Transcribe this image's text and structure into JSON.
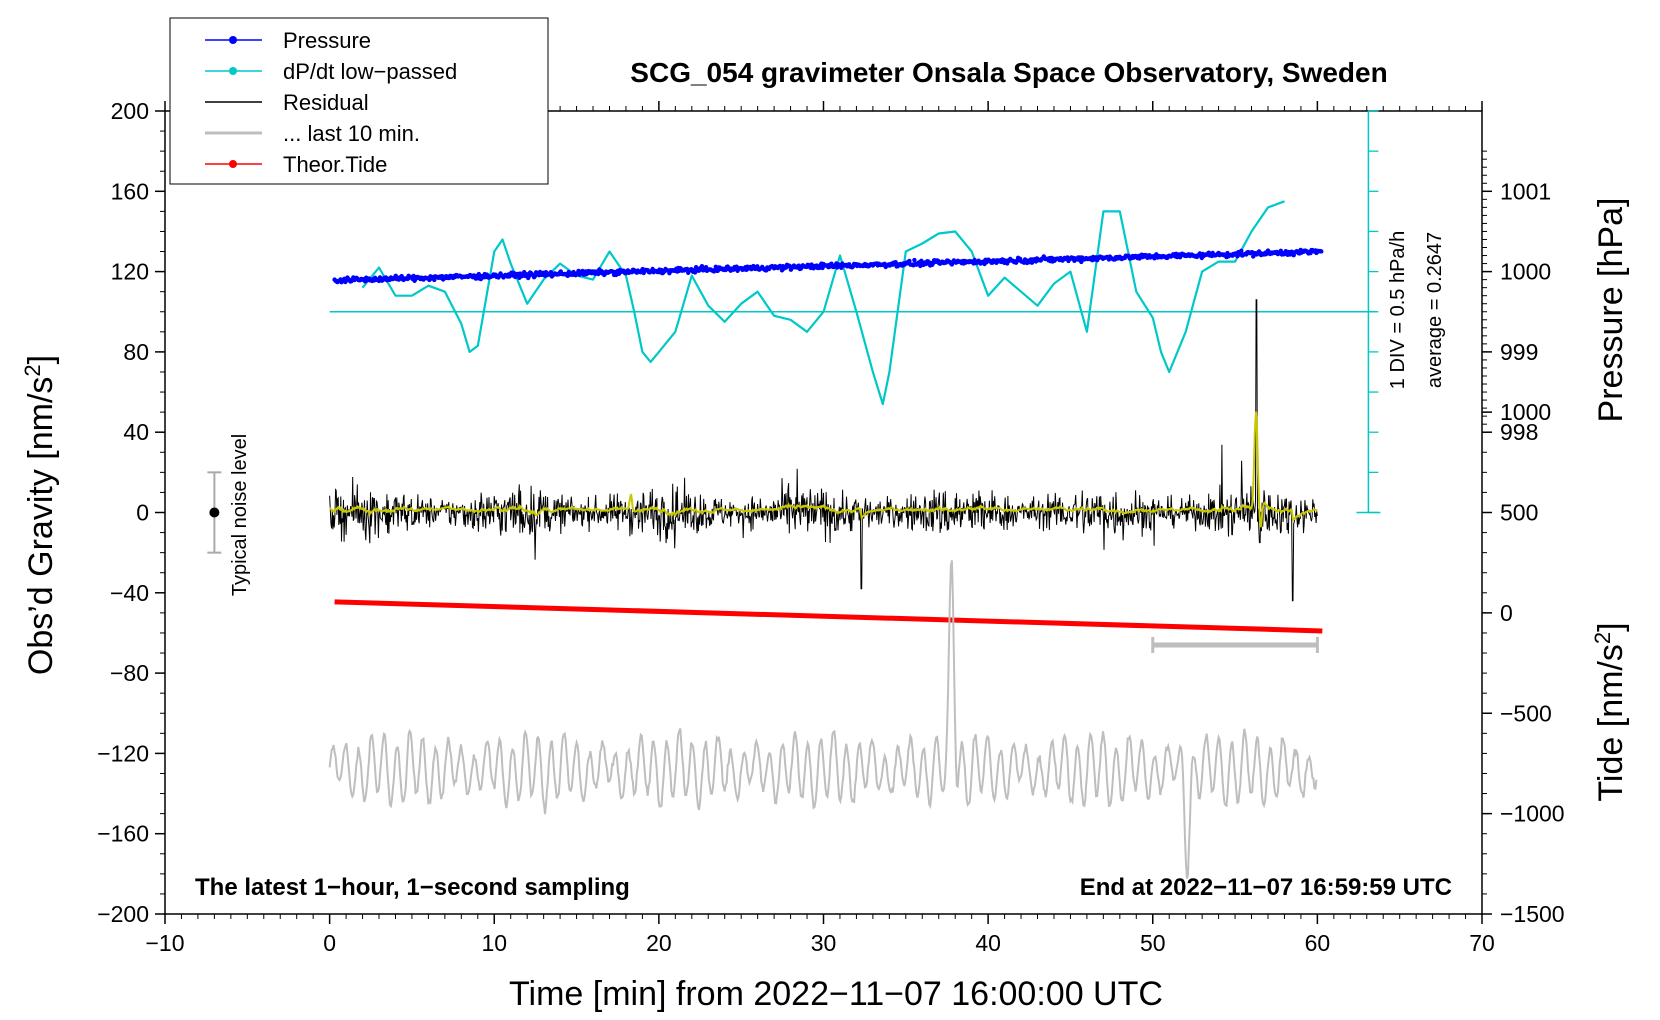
{
  "chart_data": {
    "type": "line",
    "title": "SCG_054 gravimeter Onsala Space Observatory, Sweden",
    "xlabel": "Time [min] from 2022−11−07 16:00:00 UTC",
    "ylabel_left_text": "Obs’d Gravity [nm/s",
    "ylabel_left_sup": "2",
    "ylabel_left_close": "]",
    "ylabel_right_pressure": "Pressure [hPa]",
    "ylabel_right_tide_text": "Tide [nm/s",
    "ylabel_right_tide_sup": "2",
    "ylabel_right_tide_close": "]",
    "xlim": [
      -10,
      70
    ],
    "ylim": [
      -200,
      200
    ],
    "x_ticks": [
      -10,
      0,
      10,
      20,
      30,
      40,
      50,
      60,
      70
    ],
    "x_tick_labels": [
      "−10",
      "0",
      "10",
      "20",
      "30",
      "40",
      "50",
      "60",
      "70"
    ],
    "y_ticks": [
      -200,
      -160,
      -120,
      -80,
      -40,
      0,
      40,
      80,
      120,
      160,
      200
    ],
    "y_tick_labels": [
      "−200",
      "−160",
      "−120",
      "−80",
      "−40",
      "0",
      "40",
      "80",
      "120",
      "160",
      "200"
    ],
    "pressure_axis": {
      "ticks": [
        998,
        999,
        1000,
        1001
      ],
      "tick_labels": [
        "998",
        "999",
        "1000",
        "1001"
      ],
      "gravity_per_hPa": 40,
      "gravity_at_998": 40
    },
    "tide_axis": {
      "ticks": [
        -1500,
        -1000,
        -500,
        0,
        500,
        1000
      ],
      "tick_labels": [
        "−1500",
        "−1000",
        "−500",
        "0",
        "500",
        "1000"
      ],
      "gravity_at_minus1500": -200,
      "gravity_per_500": 50
    },
    "legend": [
      {
        "label": "Pressure",
        "color": "#0000ff",
        "marker": true
      },
      {
        "label": "dP/dt low−passed",
        "color": "#00c8c8",
        "marker": true
      },
      {
        "label": "Residual",
        "color": "#000000",
        "marker": false
      },
      {
        "label": "... last 10 min.",
        "color": "#bebebe",
        "marker": false
      },
      {
        "label": "Theor.Tide",
        "color": "#ff0000",
        "marker": true
      }
    ],
    "annotations": {
      "bottom_left": "The latest 1−hour, 1−second sampling",
      "bottom_right": "End at 2022−11−07 16:59:59 UTC",
      "noise_label": "Typical noise level",
      "dpdt_scale": "1 DIV = 0.5 hPa/h",
      "dpdt_average": "average = 0.2647"
    },
    "colors": {
      "pressure": "#0000ff",
      "dpdt": "#00c8c8",
      "residual": "#000000",
      "residual_smooth": "#c8c800",
      "last10": "#bebebe",
      "tide": "#ff0000"
    },
    "series": [
      {
        "name": "Pressure",
        "units": "hPa",
        "x_range": [
          0.3,
          60.3
        ],
        "start": 999.89,
        "end": 1000.25,
        "scatter_hpa": 0.03
      },
      {
        "name": "dP/dt low−passed",
        "units": "gravity-axis value",
        "baseline": 100,
        "x": [
          2,
          3,
          4,
          5,
          6,
          7,
          8,
          8.5,
          9,
          10,
          10.5,
          11,
          12,
          13,
          14,
          15,
          16,
          17,
          18,
          18.5,
          19,
          19.5,
          20,
          21,
          22,
          23,
          24,
          25,
          26,
          27,
          28,
          29,
          30,
          31,
          32,
          33,
          33.6,
          34,
          35,
          36,
          37,
          38,
          39,
          40,
          41,
          42,
          43,
          44,
          45,
          46,
          47,
          48,
          49,
          50,
          50.5,
          51,
          52,
          53,
          54,
          55,
          56,
          57,
          58
        ],
        "y": [
          112,
          122,
          108,
          108,
          113,
          110,
          94,
          80,
          83,
          130,
          136,
          124,
          104,
          116,
          124,
          118,
          116,
          130,
          118,
          100,
          80,
          75,
          80,
          90,
          118,
          103,
          95,
          104,
          110,
          98,
          96,
          90,
          100,
          128,
          100,
          70,
          54,
          70,
          130,
          134,
          139,
          140,
          130,
          108,
          117,
          110,
          103,
          114,
          120,
          90,
          150,
          150,
          110,
          97,
          80,
          70,
          90,
          120,
          125,
          125,
          140,
          152,
          155
        ]
      },
      {
        "name": "Residual",
        "units": "nm/s^2",
        "x_range": [
          0,
          60
        ],
        "amplitude": 10,
        "spikes": [
          {
            "x": 56.3,
            "y": 106
          },
          {
            "x": 56.5,
            "y": -15
          },
          {
            "x": 58.5,
            "y": -44
          },
          {
            "x": 32.3,
            "y": -38
          }
        ]
      },
      {
        "name": "... last 10 min.",
        "units": "nm/s^2 (shown compressed, 0..60 min)",
        "baseline": -128,
        "amplitude": 14,
        "spikes": [
          {
            "x": 37.8,
            "y": -30
          },
          {
            "x": 52.1,
            "y": -168
          }
        ]
      },
      {
        "name": "Theor.Tide",
        "units": "nm/s^2",
        "x": [
          0.3,
          60.3
        ],
        "y_tide": [
          55,
          -90
        ]
      }
    ],
    "scale_bar": {
      "x": [
        50,
        60
      ],
      "y": -66
    },
    "noise_bar": {
      "x": -7,
      "y": 0,
      "half_range": 20
    }
  }
}
